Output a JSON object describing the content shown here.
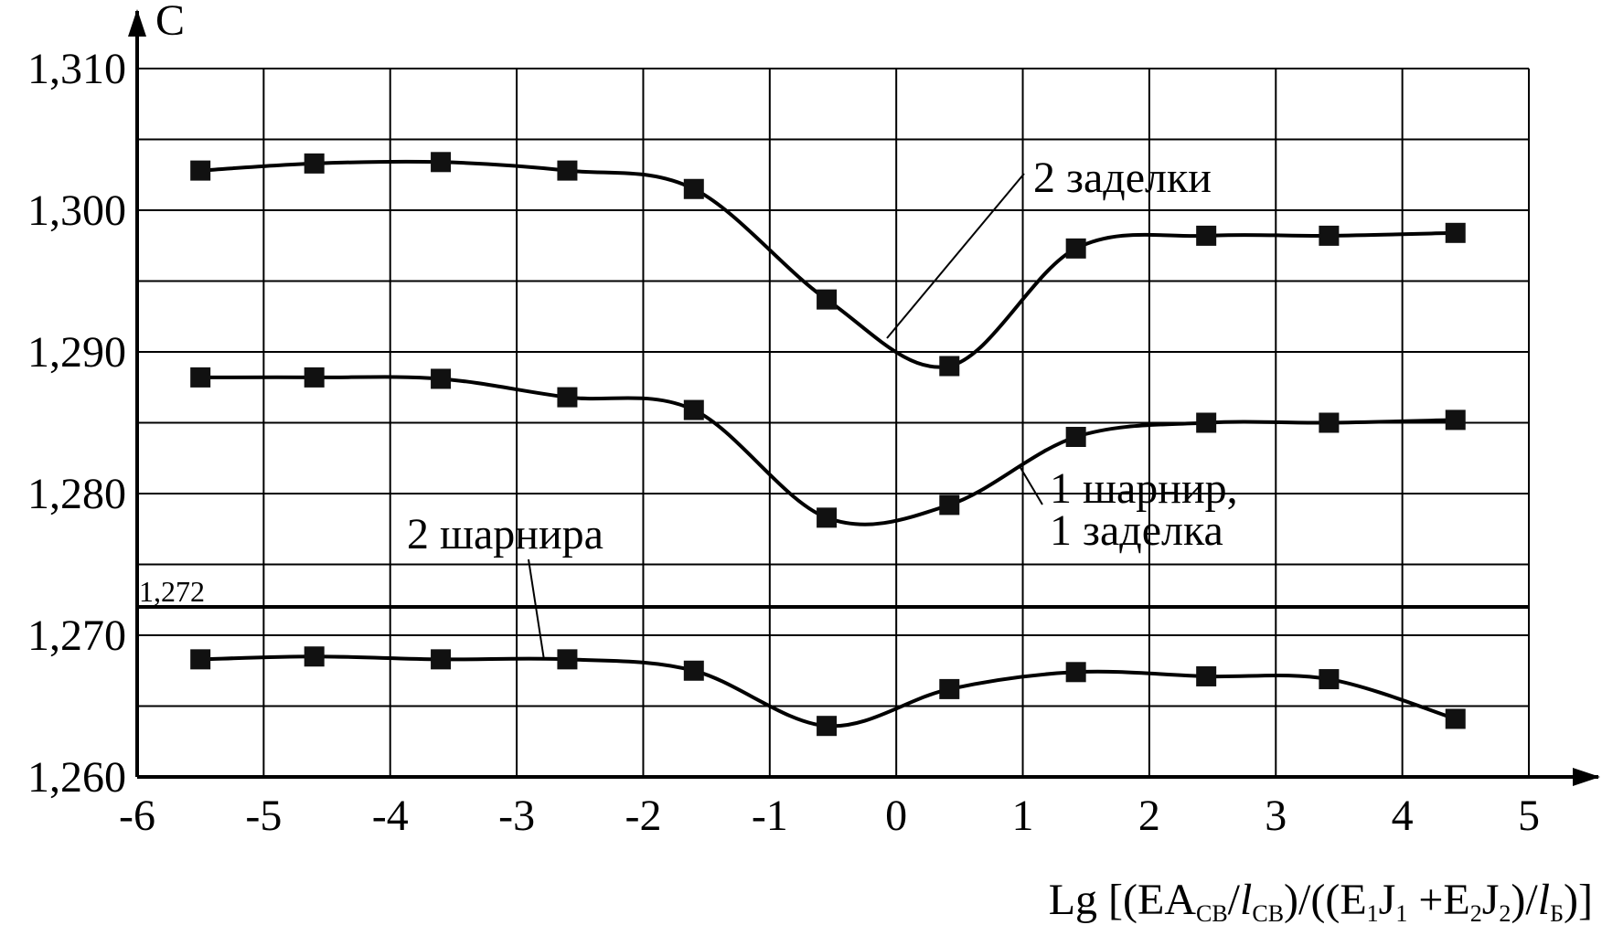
{
  "chart_data": {
    "type": "line",
    "ylabel": "C",
    "xlabel_parts": {
      "lg": "Lg [(EA",
      "sub_sv1": "СВ",
      "slash_l": "/",
      "l1": "l",
      "sub_sv2": "СВ",
      "mid": ")/((E",
      "one": "1",
      "j1": "J",
      "one_b": "1",
      "plus": " +E",
      "two": "2",
      "j2": "J",
      "two_b": "2",
      "close": ")/",
      "l2": "l",
      "sub_b": "Б",
      "end": ")]"
    },
    "xlim": [
      -6,
      5
    ],
    "ylim": [
      1.26,
      1.31
    ],
    "x_ticks": [
      -6,
      -5,
      -4,
      -3,
      -2,
      -1,
      0,
      1,
      2,
      3,
      4,
      5
    ],
    "x_tick_labels": [
      "-6",
      "-5",
      "-4",
      "-3",
      "-2",
      "-1",
      "0",
      "1",
      "2",
      "3",
      "4",
      "5"
    ],
    "y_ticks": [
      1.26,
      1.27,
      1.28,
      1.29,
      1.3,
      1.31
    ],
    "y_tick_labels": [
      "1,260",
      "1,270",
      "1,280",
      "1,290",
      "1,300",
      "1,310"
    ],
    "y_grid": [
      1.26,
      1.265,
      1.27,
      1.275,
      1.28,
      1.285,
      1.29,
      1.295,
      1.3,
      1.305,
      1.31
    ],
    "grid": true,
    "reference_line": {
      "value": 1.272,
      "label": "1,272"
    },
    "series": [
      {
        "label_lines": [
          "2 заделки"
        ],
        "x": [
          -5.5,
          -4.6,
          -3.6,
          -2.6,
          -1.6,
          -0.55,
          0.42,
          1.42,
          2.45,
          3.42,
          4.42
        ],
        "y": [
          1.3028,
          1.3033,
          1.3034,
          1.3028,
          1.3015,
          1.2937,
          1.289,
          1.2973,
          1.2982,
          1.2982,
          1.2984
        ]
      },
      {
        "label_lines": [
          "1 шарнир,",
          "1 заделка"
        ],
        "x": [
          -5.5,
          -4.6,
          -3.6,
          -2.6,
          -1.6,
          -0.55,
          0.42,
          1.42,
          2.45,
          3.42,
          4.42
        ],
        "y": [
          1.2882,
          1.2882,
          1.2881,
          1.2868,
          1.2859,
          1.2783,
          1.2792,
          1.284,
          1.285,
          1.285,
          1.2852
        ]
      },
      {
        "label_lines": [
          "2 шарнира"
        ],
        "x": [
          -5.5,
          -4.6,
          -3.6,
          -2.6,
          -1.6,
          -0.55,
          0.42,
          1.42,
          2.45,
          3.42,
          4.42
        ],
        "y": [
          1.2683,
          1.2685,
          1.2683,
          1.2683,
          1.2675,
          1.2636,
          1.2662,
          1.2674,
          1.2671,
          1.2669,
          1.2641
        ]
      }
    ]
  }
}
